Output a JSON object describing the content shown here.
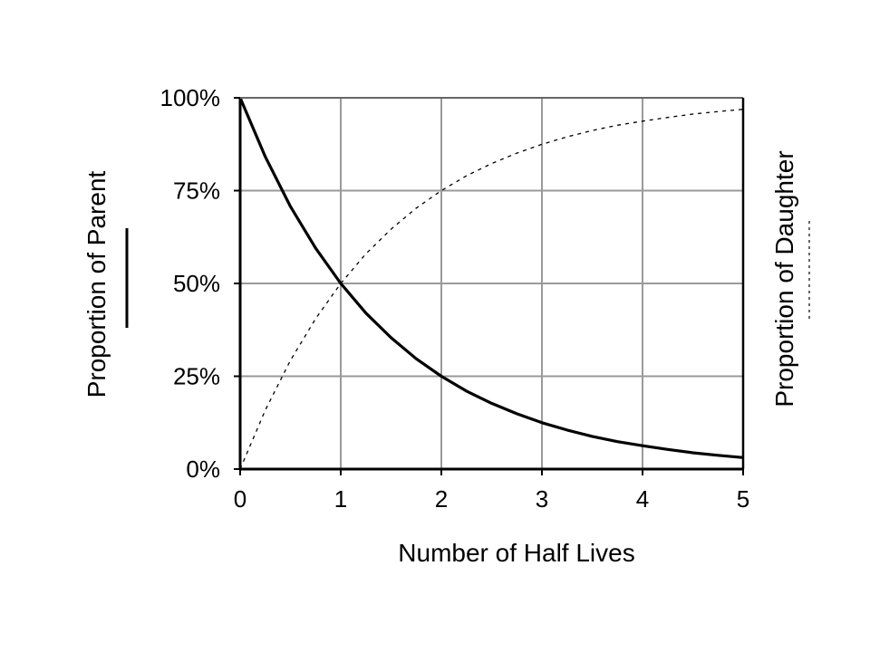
{
  "chart_data": {
    "type": "line",
    "xlabel": "Number of Half Lives",
    "ylabel_left": "Proportion of Parent",
    "ylabel_right": "Proportion of Daughter",
    "xlim": [
      0,
      5
    ],
    "ylim": [
      0,
      100
    ],
    "x_ticks": [
      0,
      1,
      2,
      3,
      4,
      5
    ],
    "x_tick_labels": [
      "0",
      "1",
      "2",
      "3",
      "4",
      "5"
    ],
    "y_ticks": [
      0,
      25,
      50,
      75,
      100
    ],
    "y_tick_labels": [
      "0%",
      "25%",
      "50%",
      "75%",
      "100%"
    ],
    "grid": true,
    "series": [
      {
        "name": "Proportion of Parent",
        "style": "solid",
        "x": [
          0,
          0.25,
          0.5,
          0.75,
          1,
          1.25,
          1.5,
          1.75,
          2,
          2.25,
          2.5,
          2.75,
          3,
          3.25,
          3.5,
          3.75,
          4,
          4.25,
          4.5,
          4.75,
          5
        ],
        "y": [
          100,
          84.1,
          70.7,
          59.5,
          50,
          42,
          35.4,
          29.7,
          25,
          21,
          17.7,
          14.9,
          12.5,
          10.5,
          8.8,
          7.4,
          6.3,
          5.3,
          4.4,
          3.7,
          3.1
        ]
      },
      {
        "name": "Proportion of Daughter",
        "style": "dashed",
        "x": [
          0,
          0.25,
          0.5,
          0.75,
          1,
          1.25,
          1.5,
          1.75,
          2,
          2.25,
          2.5,
          2.75,
          3,
          3.25,
          3.5,
          3.75,
          4,
          4.25,
          4.5,
          4.75,
          5
        ],
        "y": [
          0,
          15.9,
          29.3,
          40.5,
          50,
          58,
          64.6,
          70.3,
          75,
          79,
          82.3,
          85.1,
          87.5,
          89.5,
          91.2,
          92.6,
          93.7,
          94.7,
          95.6,
          96.3,
          96.9
        ]
      }
    ]
  }
}
